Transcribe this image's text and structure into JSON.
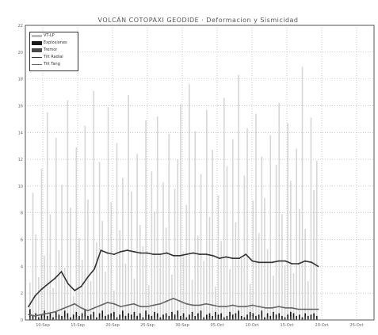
{
  "chart_data": {
    "type": "bar",
    "title": "VOLCÁN COTOPAXI GEODIDE · Deformacion y Sismicidad",
    "legend": {
      "placement": "top-left"
    },
    "grid": true,
    "ylim": [
      0,
      22
    ],
    "y_ticks": [
      "0",
      "2",
      "4",
      "6",
      "8",
      "10",
      "12",
      "14",
      "16",
      "18",
      "20",
      "22"
    ],
    "x_labels": [
      "10-Sep",
      "15-Sep",
      "20-Sep",
      "25-Sep",
      "30-Sep",
      "05-Oct",
      "10-Oct",
      "15-Oct",
      "20-Oct",
      "25-Oct"
    ],
    "series": [
      {
        "name": "VT-LP",
        "color": "#bdbdbd",
        "type": "bar",
        "values": [
          2.8,
          9.5,
          6.4,
          3.2,
          11.3,
          4.8,
          15.5,
          7.9,
          2.4,
          13.6,
          5.2,
          10.1,
          3.9,
          16.4,
          8.4,
          1.8,
          12.9,
          6.1,
          4.5,
          14.5,
          9.0,
          2.9,
          17.1,
          5.8,
          11.8,
          7.4,
          3.6,
          15.9,
          8.8,
          2.2,
          13.2,
          6.7,
          10.6,
          4.2,
          16.8,
          9.6,
          3.1,
          12.4,
          7.1,
          5.5,
          14.9,
          2.6,
          11.1,
          8.1,
          15.2,
          4.9,
          10.3,
          6.9,
          13.9,
          3.4,
          9.8,
          12.0,
          16.1,
          5.1,
          8.6,
          17.6,
          3.0,
          14.1,
          6.3,
          10.9,
          4.4,
          15.7,
          7.7,
          12.7,
          2.5,
          9.3,
          5.9,
          16.6,
          11.5,
          3.8,
          13.5,
          7.3,
          18.3,
          4.6,
          10.8,
          14.3,
          2.7,
          8.9,
          15.4,
          6.5,
          12.2,
          9.1,
          5.3,
          13.8,
          3.3,
          11.6,
          16.2,
          7.9,
          4.1,
          14.7,
          10.4,
          3.5,
          12.8,
          8.3,
          18.9,
          6.8,
          2.9,
          15.1,
          9.7,
          11.9
        ]
      },
      {
        "name": "Explosiones",
        "color": "#1a1a1a",
        "type": "bar",
        "values": [
          0.8,
          0.3,
          0.5,
          0.2,
          0.4,
          0.7,
          0.3,
          0.5,
          0.2,
          0.6,
          0.4,
          0.3,
          0.7,
          0.5,
          0.2,
          0.4,
          0.6,
          0.3,
          0.5,
          0.8,
          0.3,
          0.4,
          0.6,
          0.2,
          0.5,
          0.7,
          0.3,
          0.4,
          0.5,
          0.6,
          0.2,
          0.4,
          0.7,
          0.3,
          0.5,
          0.4,
          0.6,
          0.3,
          0.5,
          0.2,
          0.7,
          0.4,
          0.3,
          0.6,
          0.5,
          0.2,
          0.4,
          0.5,
          0.3,
          0.6,
          0.4,
          0.7,
          0.3,
          0.5,
          0.2,
          0.4,
          0.6,
          0.3,
          0.5,
          0.7,
          0.2,
          0.4,
          0.5,
          0.3,
          0.6,
          0.4,
          0.5,
          0.2,
          0.3,
          0.6,
          0.4,
          0.5,
          0.7,
          0.3,
          0.2,
          0.4,
          0.6,
          0.5,
          0.3,
          0.4,
          0.7,
          0.2,
          0.5,
          0.3,
          0.6,
          0.4,
          0.5,
          0.3,
          0.2,
          0.4,
          0.6,
          0.5,
          0.3,
          0.4,
          0.2,
          0.5,
          0.3,
          0.4,
          0.5,
          0.3
        ]
      },
      {
        "name": "Tremor",
        "color": "#4a4a4a",
        "type": "bar",
        "values": [
          0.2,
          0.1,
          0.2,
          0.1,
          0.1,
          0.2,
          0.1,
          0.2,
          0.1,
          0.2,
          0.1,
          0.1,
          0.2,
          0.2,
          0.1,
          0.1,
          0.2,
          0.1,
          0.2,
          0.2,
          0.1,
          0.1,
          0.2,
          0.1,
          0.2,
          0.2,
          0.1,
          0.1,
          0.2,
          0.2,
          0.1,
          0.1,
          0.2,
          0.1,
          0.2,
          0.1,
          0.2,
          0.1,
          0.2,
          0.1,
          0.2,
          0.1,
          0.1,
          0.2,
          0.2,
          0.1,
          0.1,
          0.2,
          0.1,
          0.2,
          0.1,
          0.2,
          0.1,
          0.2,
          0.1,
          0.1,
          0.2,
          0.1,
          0.2,
          0.2,
          0.1,
          0.1,
          0.2,
          0.1,
          0.2,
          0.1,
          0.2,
          0.1,
          0.1,
          0.2,
          0.1,
          0.2,
          0.2,
          0.1,
          0.1,
          0.1,
          0.2,
          0.2,
          0.1,
          0.1,
          0.2,
          0.1,
          0.2,
          0.1,
          0.2,
          0.1,
          0.2,
          0.1,
          0.1,
          0.1,
          0.2,
          0.2,
          0.1,
          0.1,
          0.1,
          0.2,
          0.1,
          0.1,
          0.2,
          0.1
        ]
      },
      {
        "name": "Tilt Radial",
        "color": "#333333",
        "type": "line",
        "values": [
          1.0,
          1.8,
          2.3,
          2.7,
          3.1,
          3.6,
          2.7,
          2.2,
          2.5,
          3.2,
          3.8,
          5.2,
          5.0,
          4.9,
          5.1,
          5.2,
          5.1,
          5.0,
          5.0,
          4.9,
          4.9,
          5.0,
          4.8,
          4.8,
          4.9,
          5.0,
          4.9,
          4.9,
          4.8,
          4.6,
          4.7,
          4.6,
          4.6,
          4.9,
          4.4,
          4.3,
          4.3,
          4.3,
          4.4,
          4.4,
          4.2,
          4.2,
          4.4,
          4.3,
          4.0
        ]
      },
      {
        "name": "Tilt Tang",
        "color": "#666666",
        "type": "line",
        "values": [
          0.4,
          0.3,
          0.4,
          0.5,
          0.6,
          0.8,
          1.0,
          1.2,
          0.9,
          0.7,
          0.9,
          1.1,
          1.3,
          1.2,
          1.0,
          1.1,
          1.2,
          1.0,
          1.0,
          1.1,
          1.2,
          1.4,
          1.6,
          1.4,
          1.2,
          1.1,
          1.1,
          1.2,
          1.1,
          1.0,
          1.0,
          1.1,
          1.0,
          1.0,
          1.1,
          1.0,
          0.9,
          0.9,
          1.0,
          0.9,
          0.9,
          0.8,
          0.8,
          0.8,
          0.8
        ]
      }
    ]
  }
}
